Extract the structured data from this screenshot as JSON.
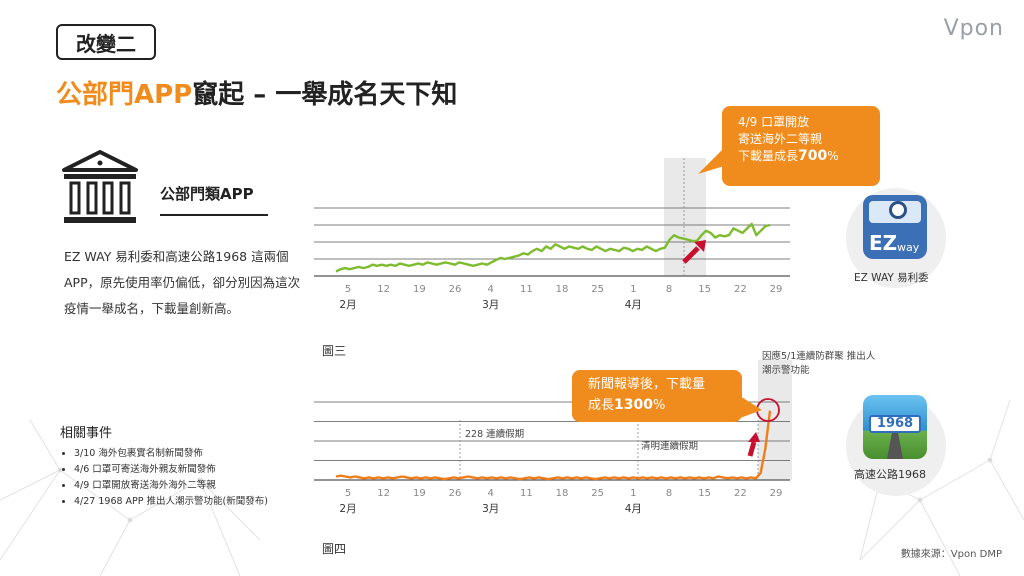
{
  "slide": {
    "tag": "改變二",
    "title_highlight": "公部門APP",
    "title_rest": "竄起 – 一舉成名天下知",
    "logo": "Vpon",
    "section_heading": "公部門類APP",
    "description": "EZ WAY 易利委和高速公路1968 這兩個APP，原先使用率仍偏低，卻分別因為這次疫情一舉成名，下載量創新高。",
    "events_title": "相關事件",
    "events": [
      "3/10 海外包裹實名制新聞發佈",
      "4/6 口罩可寄送海外親友新聞發佈",
      "4/9 口罩開放寄送海外海外二等親",
      "4/27 1968 APP 推出人潮示警功能(新聞發布)"
    ],
    "source": "數據來源：Vpon DMP"
  },
  "callout1": {
    "line1": "4/9 口罩開放",
    "line2": "寄送海外二等親",
    "line3_prefix": "下載量成長",
    "line3_value": "700",
    "line3_suffix": "%"
  },
  "callout2": {
    "line1": "新聞報導後，下載量",
    "line2_prefix": "成長",
    "line2_value": "1300",
    "line2_suffix": "%"
  },
  "app1": {
    "name": "EZ WAY 易利委",
    "icon_text": "EZ",
    "icon_sub": "way",
    "color": "#3b6fb6"
  },
  "app2": {
    "name": "高速公路1968",
    "icon_text": "1968",
    "color": "#4aa8e0"
  },
  "annotations": {
    "fig4_top": "因應5/1連續防群聚 推出人潮示警功能",
    "holiday228": "228 連續假期",
    "qingming": "清明連續假期"
  },
  "colors": {
    "accent": "#f08c1e",
    "green": "#7dbb2f",
    "orange_line": "#f07d1a",
    "arrow": "#c8102e"
  },
  "chart_data": [
    {
      "type": "line",
      "name": "圖三",
      "title": "圖三",
      "x_ticks": [
        "5",
        "12",
        "19",
        "26",
        "4",
        "11",
        "18",
        "25",
        "1",
        "8",
        "15",
        "22",
        "29"
      ],
      "month_labels": [
        {
          "label": "2月",
          "at": "5"
        },
        {
          "label": "3月",
          "at": "4"
        },
        {
          "label": "4月",
          "at": "1"
        }
      ],
      "values": [
        2,
        3,
        3.5,
        3,
        3.5,
        4,
        3.5,
        4,
        5,
        4.5,
        5,
        4.5,
        5,
        4.5,
        5.5,
        5,
        4.5,
        5,
        5.5,
        5,
        6,
        5.5,
        5,
        5.5,
        6,
        5.5,
        5,
        6,
        5.5,
        5,
        4.5,
        5,
        5.5,
        5,
        6,
        7,
        8,
        7.5,
        8,
        8.5,
        9,
        10,
        9.5,
        11,
        12,
        11,
        13,
        12,
        14,
        13,
        12,
        13,
        12.5,
        12,
        13,
        12,
        11.5,
        13,
        12,
        11,
        12,
        11.5,
        11,
        12.5,
        12,
        11,
        12,
        11.5,
        13,
        12,
        11,
        12,
        12.5,
        16,
        18,
        17,
        16.5,
        16,
        15.5,
        15.5,
        18,
        20,
        19,
        17,
        18,
        17.5,
        18,
        21,
        20,
        19,
        21,
        23,
        18,
        20,
        22,
        22.5
      ],
      "ylim": [
        0,
        30
      ],
      "highlight_period": "4/9",
      "grid": "horizontal",
      "color": "#7dbb2f"
    },
    {
      "type": "line",
      "name": "圖四",
      "title": "圖四",
      "x_ticks": [
        "5",
        "12",
        "19",
        "26",
        "4",
        "11",
        "18",
        "25",
        "1",
        "8",
        "15",
        "22",
        "29"
      ],
      "month_labels": [
        {
          "label": "2月",
          "at": "5"
        },
        {
          "label": "3月",
          "at": "4"
        },
        {
          "label": "4月",
          "at": "1"
        }
      ],
      "values": [
        2,
        2.5,
        2,
        1.5,
        2,
        1.5,
        1,
        1.5,
        1,
        1.5,
        1,
        1.5,
        1,
        1.5,
        2,
        1.5,
        1,
        1.5,
        1,
        1.5,
        1,
        1.5,
        1,
        0.5,
        1,
        1.5,
        1,
        1.5,
        2,
        1.5,
        1,
        1.5,
        1,
        1.5,
        1,
        1.5,
        1,
        1.5,
        1,
        0.5,
        1,
        1.5,
        1,
        1.5,
        1,
        0.5,
        1,
        1.5,
        1,
        1.5,
        1,
        1.5,
        1,
        1.5,
        1,
        0.5,
        1,
        1.5,
        1,
        1.5,
        1,
        1.5,
        1,
        1.5,
        1,
        1.5,
        1,
        1.5,
        1,
        1.5,
        1,
        1.5,
        1,
        1.5,
        1,
        1.5,
        1,
        1.5,
        1,
        1.5,
        1,
        2,
        1.5,
        1,
        1.5,
        1,
        1.5,
        1,
        1.5,
        1,
        4,
        18,
        40
      ],
      "ylim": [
        0,
        45
      ],
      "highlight_period": "4/27",
      "grid": "horizontal",
      "color": "#f07d1a"
    }
  ]
}
